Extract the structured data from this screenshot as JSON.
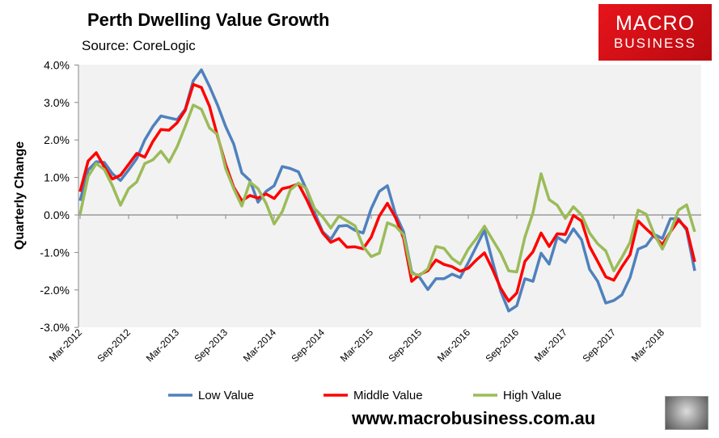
{
  "header": {
    "title": "Perth Dwelling Value Growth",
    "source": "Source: CoreLogic"
  },
  "logo": {
    "line1": "MACRO",
    "line2": "BUSINESS"
  },
  "footer": {
    "url": "www.macrobusiness.com.au"
  },
  "colors": {
    "low": "#4f81bd",
    "middle": "#ff0000",
    "high": "#9bbb59",
    "plot_bg": "#f2f2f2",
    "logo": "#e8141b"
  },
  "chart_data": {
    "type": "line",
    "title": "Perth Dwelling Value Growth",
    "ylabel": "Quarterly Change",
    "xlabel": "",
    "ylim": [
      -3,
      4
    ],
    "yticks": [
      "-3.0%",
      "-2.0%",
      "-1.0%",
      "0.0%",
      "1.0%",
      "2.0%",
      "3.0%",
      "4.0%"
    ],
    "xtick_labels": [
      "Mar-2012",
      "Sep-2012",
      "Mar-2013",
      "Sep-2013",
      "Mar-2014",
      "Sep-2014",
      "Mar-2015",
      "Sep-2015",
      "Mar-2016",
      "Sep-2016",
      "Mar-2017",
      "Sep-2017",
      "Mar-2018"
    ],
    "grid": false,
    "legend": "bottom",
    "x": [
      "Mar-2012",
      "Apr-2012",
      "May-2012",
      "Jun-2012",
      "Jul-2012",
      "Aug-2012",
      "Sep-2012",
      "Oct-2012",
      "Nov-2012",
      "Dec-2012",
      "Jan-2013",
      "Feb-2013",
      "Mar-2013",
      "Apr-2013",
      "May-2013",
      "Jun-2013",
      "Jul-2013",
      "Aug-2013",
      "Sep-2013",
      "Oct-2013",
      "Nov-2013",
      "Dec-2013",
      "Jan-2014",
      "Feb-2014",
      "Mar-2014",
      "Apr-2014",
      "May-2014",
      "Jun-2014",
      "Jul-2014",
      "Aug-2014",
      "Sep-2014",
      "Oct-2014",
      "Nov-2014",
      "Dec-2014",
      "Jan-2015",
      "Feb-2015",
      "Mar-2015",
      "Apr-2015",
      "May-2015",
      "Jun-2015",
      "Jul-2015",
      "Aug-2015",
      "Sep-2015",
      "Oct-2015",
      "Nov-2015",
      "Dec-2015",
      "Jan-2016",
      "Feb-2016",
      "Mar-2016",
      "Apr-2016",
      "May-2016",
      "Jun-2016",
      "Jul-2016",
      "Aug-2016",
      "Sep-2016",
      "Oct-2016",
      "Nov-2016",
      "Dec-2016",
      "Jan-2017",
      "Feb-2017",
      "Mar-2017",
      "Apr-2017",
      "May-2017",
      "Jun-2017",
      "Jul-2017",
      "Aug-2017",
      "Sep-2017",
      "Oct-2017",
      "Nov-2017",
      "Dec-2017",
      "Jan-2018",
      "Feb-2018",
      "Mar-2018",
      "Apr-2018",
      "May-2018",
      "Jun-2018",
      "Jul-2018"
    ],
    "series": [
      {
        "name": "Low Value",
        "key": "low",
        "values": [
          0.38,
          1.2,
          1.42,
          1.4,
          1.1,
          0.92,
          1.2,
          1.5,
          2.0,
          2.36,
          2.64,
          2.59,
          2.54,
          2.82,
          3.58,
          3.87,
          3.43,
          2.93,
          2.36,
          1.89,
          1.12,
          0.92,
          0.34,
          0.63,
          0.78,
          1.29,
          1.24,
          1.15,
          0.67,
          0.06,
          -0.45,
          -0.65,
          -0.3,
          -0.28,
          -0.41,
          -0.48,
          0.17,
          0.63,
          0.78,
          0.02,
          -0.45,
          -1.52,
          -1.67,
          -1.99,
          -1.7,
          -1.7,
          -1.58,
          -1.67,
          -1.27,
          -0.84,
          -0.41,
          -1.24,
          -2.03,
          -2.56,
          -2.42,
          -1.7,
          -1.77,
          -1.02,
          -1.31,
          -0.59,
          -0.73,
          -0.37,
          -0.66,
          -1.45,
          -1.77,
          -2.35,
          -2.28,
          -2.13,
          -1.67,
          -0.91,
          -0.82,
          -0.52,
          -0.63,
          -0.1,
          -0.1,
          -0.41,
          -1.49
        ]
      },
      {
        "name": "Middle Value",
        "key": "middle",
        "values": [
          0.62,
          1.44,
          1.66,
          1.28,
          0.96,
          1.06,
          1.35,
          1.64,
          1.54,
          1.96,
          2.28,
          2.26,
          2.46,
          2.79,
          3.48,
          3.4,
          2.9,
          2.1,
          1.35,
          0.74,
          0.38,
          0.52,
          0.45,
          0.56,
          0.44,
          0.7,
          0.75,
          0.83,
          0.42,
          -0.05,
          -0.48,
          -0.73,
          -0.63,
          -0.86,
          -0.85,
          -0.9,
          -0.59,
          -0.03,
          0.31,
          -0.07,
          -0.62,
          -1.77,
          -1.59,
          -1.49,
          -1.2,
          -1.32,
          -1.38,
          -1.5,
          -1.42,
          -1.2,
          -1.01,
          -1.45,
          -1.95,
          -2.3,
          -2.08,
          -1.24,
          -0.98,
          -0.48,
          -0.84,
          -0.5,
          -0.52,
          -0.01,
          -0.16,
          -0.84,
          -1.24,
          -1.65,
          -1.74,
          -1.38,
          -1.06,
          -0.16,
          -0.37,
          -0.57,
          -0.79,
          -0.45,
          -0.14,
          -0.36,
          -1.25
        ]
      },
      {
        "name": "High Value",
        "key": "high",
        "values": [
          0.02,
          1.03,
          1.37,
          1.21,
          0.78,
          0.26,
          0.7,
          0.88,
          1.37,
          1.47,
          1.7,
          1.41,
          1.82,
          2.36,
          2.93,
          2.82,
          2.32,
          2.14,
          1.24,
          0.7,
          0.24,
          0.88,
          0.7,
          0.31,
          -0.24,
          0.09,
          0.67,
          0.85,
          0.7,
          0.17,
          -0.05,
          -0.35,
          -0.03,
          -0.16,
          -0.29,
          -0.84,
          -1.11,
          -1.02,
          -0.21,
          -0.3,
          -0.53,
          -1.56,
          -1.61,
          -1.44,
          -0.84,
          -0.89,
          -1.16,
          -1.31,
          -0.91,
          -0.63,
          -0.3,
          -0.66,
          -1.01,
          -1.49,
          -1.52,
          -0.59,
          0.06,
          1.1,
          0.41,
          0.26,
          -0.09,
          0.22,
          0,
          -0.48,
          -0.77,
          -0.96,
          -1.49,
          -1.13,
          -0.73,
          0.13,
          0.02,
          -0.52,
          -0.91,
          -0.45,
          0.13,
          0.27,
          -0.45
        ]
      }
    ]
  }
}
